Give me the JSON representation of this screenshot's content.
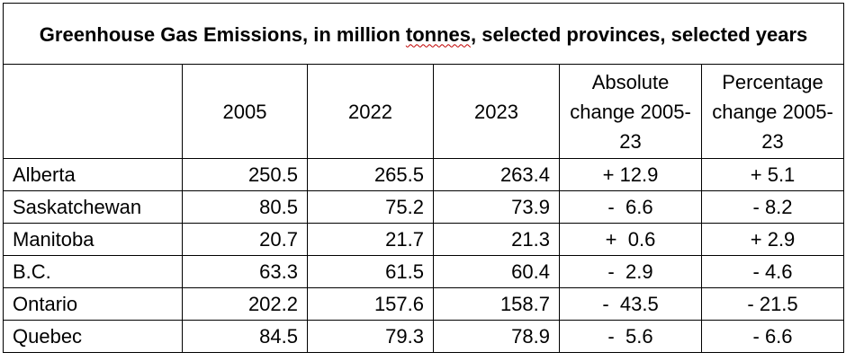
{
  "title_part1": "Greenhouse Gas Emissions, in million ",
  "title_tonnes": "tonnes",
  "title_part2": ", selected provinces, selected years",
  "columns": {
    "y2005": "2005",
    "y2022": "2022",
    "y2023": "2023",
    "abs": "Absolute change 2005-23",
    "pct": "Percentage change 2005-23"
  },
  "rows": [
    {
      "province": "Alberta",
      "v2005": "250.5",
      "v2022": "265.5",
      "v2023": "263.4",
      "abs": "+ 12.9",
      "pct": "+ 5.1"
    },
    {
      "province": "Saskatchewan",
      "v2005": "80.5",
      "v2022": "75.2",
      "v2023": "73.9",
      "abs": "-  6.6",
      "pct": "- 8.2"
    },
    {
      "province": "Manitoba",
      "v2005": "20.7",
      "v2022": "21.7",
      "v2023": "21.3",
      "abs": "+  0.6",
      "pct": "+ 2.9"
    },
    {
      "province": "B.C.",
      "v2005": "63.3",
      "v2022": "61.5",
      "v2023": "60.4",
      "abs": "-  2.9",
      "pct": "- 4.6"
    },
    {
      "province": "Ontario",
      "v2005": "202.2",
      "v2022": "157.6",
      "v2023": "158.7",
      "abs": "-  43.5",
      "pct": "- 21.5"
    },
    {
      "province": "Quebec",
      "v2005": "84.5",
      "v2022": "79.3",
      "v2023": "78.9",
      "abs": "-  5.6",
      "pct": "- 6.6"
    }
  ]
}
